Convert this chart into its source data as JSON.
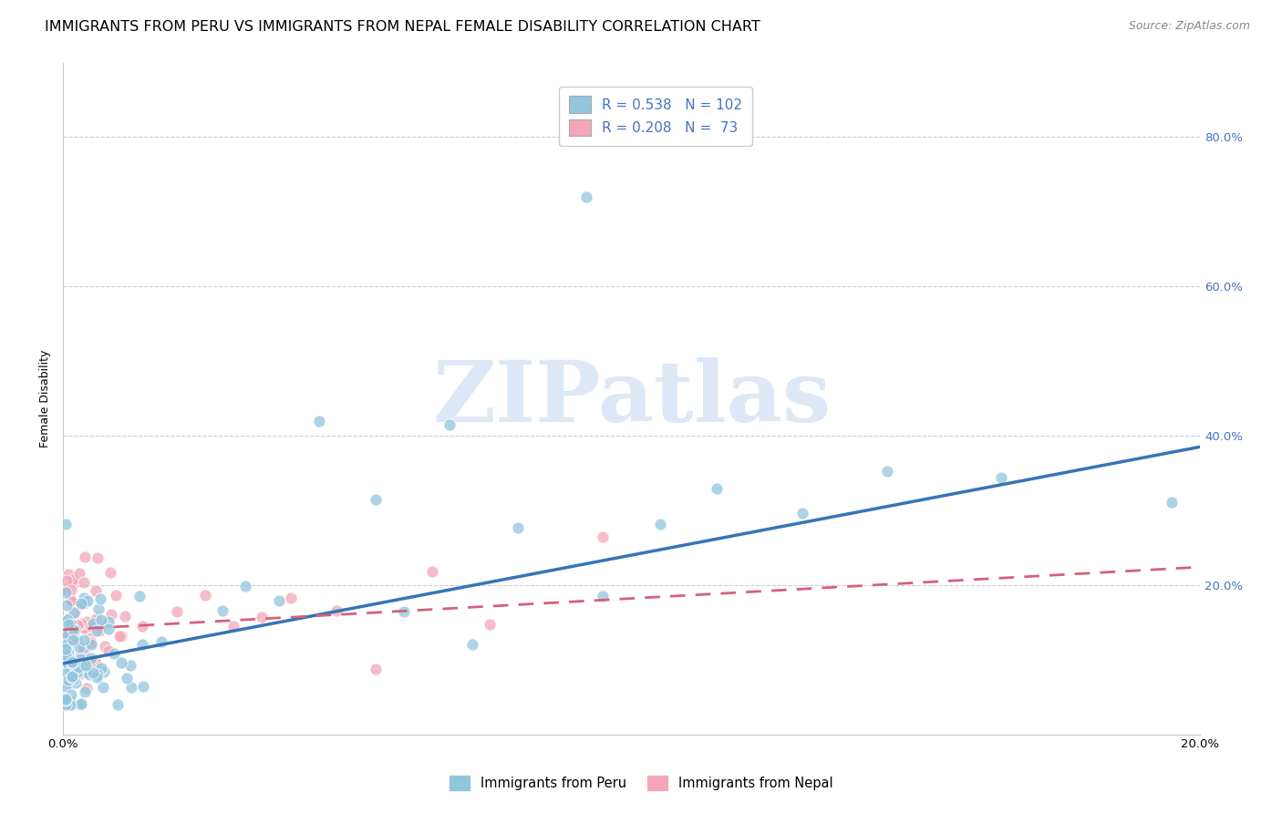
{
  "title": "IMMIGRANTS FROM PERU VS IMMIGRANTS FROM NEPAL FEMALE DISABILITY CORRELATION CHART",
  "source": "Source: ZipAtlas.com",
  "ylabel": "Female Disability",
  "xlim": [
    0.0,
    0.2
  ],
  "ylim": [
    0.0,
    0.9
  ],
  "legend_bottom_blue": "Immigrants from Peru",
  "legend_bottom_pink": "Immigrants from Nepal",
  "blue_color": "#92c5de",
  "blue_line_color": "#3575b5",
  "pink_color": "#f4a6b8",
  "pink_line_color": "#d6607a",
  "blue_R": 0.538,
  "blue_N": 102,
  "pink_R": 0.208,
  "pink_N": 73,
  "watermark_text": "ZIPatlas",
  "watermark_color": "#dce8f5",
  "background_color": "#ffffff",
  "grid_color": "#cccccc",
  "title_fontsize": 11.5,
  "axis_label_fontsize": 9,
  "tick_fontsize": 9.5,
  "source_fontsize": 9,
  "legend_fontsize": 11,
  "blue_line_intercept": 0.095,
  "blue_line_slope": 1.45,
  "pink_line_intercept": 0.14,
  "pink_line_slope": 0.42
}
